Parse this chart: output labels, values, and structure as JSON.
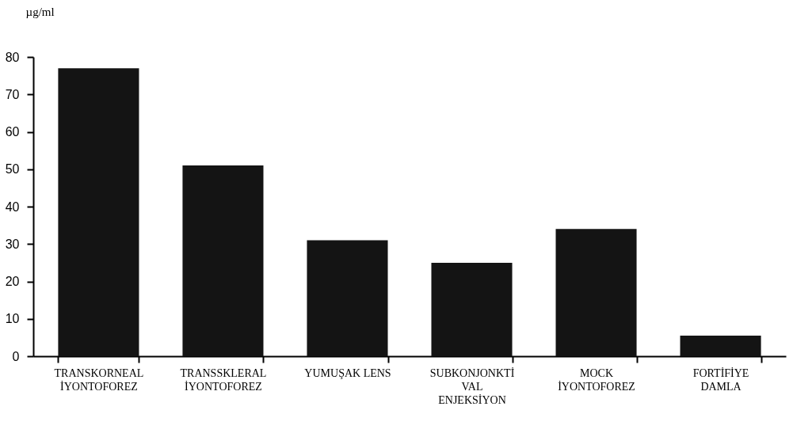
{
  "chart_data": {
    "type": "bar",
    "ylabel": "µg/ml",
    "categories": [
      "TRANSKORNEAL\nİYONTOFOREZ",
      "TRANSSKLERAL\nİYONTOFOREZ",
      "YUMUŞAK LENS",
      "SUBKONJONKTİ\nVAL\nENJEKSİYON",
      "MOCK\nİYONTOFOREZ",
      "FORTİFİYE\nDAMLA"
    ],
    "values": [
      77,
      51,
      31,
      25,
      34,
      5.5
    ],
    "color": "#141414",
    "ylim": [
      0,
      80
    ],
    "yticks": [
      0,
      10,
      20,
      30,
      40,
      50,
      60,
      70,
      80
    ],
    "grid": false
  }
}
